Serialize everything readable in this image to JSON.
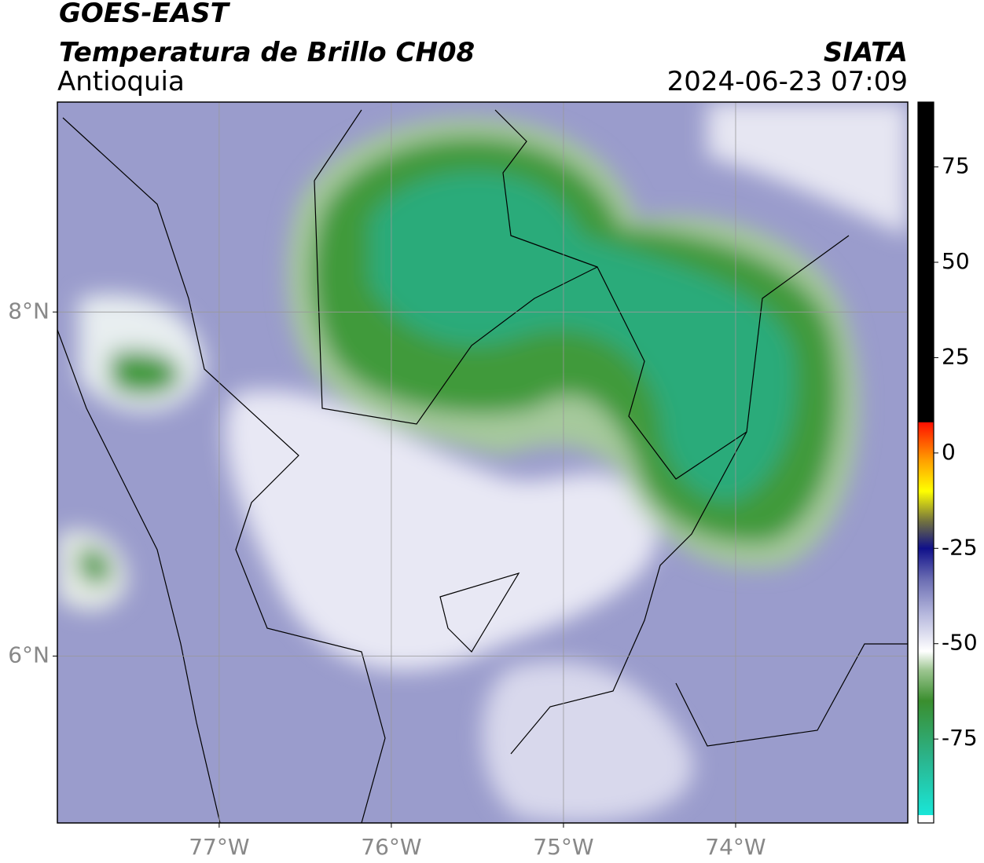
{
  "header": {
    "title": "GOES-EAST",
    "subtitle": "Temperatura de Brillo CH08",
    "region": "Antioquia",
    "source": "SIATA",
    "datetime": "2024-06-23 07:09"
  },
  "map": {
    "xlim": [
      -77.94,
      -73.0
    ],
    "ylim": [
      5.03,
      9.22
    ],
    "xticks": [
      {
        "value": -77,
        "label": "77°W"
      },
      {
        "value": -76,
        "label": "76°W"
      },
      {
        "value": -75,
        "label": "75°W"
      },
      {
        "value": -74,
        "label": "74°W"
      }
    ],
    "yticks": [
      {
        "value": 6,
        "label": "6°N"
      },
      {
        "value": 8,
        "label": "8°N"
      }
    ],
    "grid": true
  },
  "colorbar": {
    "lim": [
      -97,
      92
    ],
    "ticks": [
      75,
      50,
      25,
      0,
      -25,
      -50,
      -75
    ],
    "colormap": [
      {
        "value": -97,
        "color": "#ffffff"
      },
      {
        "value": -95,
        "color": "#ffffff"
      },
      {
        "value": -94.9,
        "color": "#19e6d8"
      },
      {
        "value": -80,
        "color": "#2bb48c"
      },
      {
        "value": -65,
        "color": "#3a8e2e"
      },
      {
        "value": -57,
        "color": "#9cc590"
      },
      {
        "value": -52,
        "color": "#ffffff"
      },
      {
        "value": -42,
        "color": "#b4b6dc"
      },
      {
        "value": -33,
        "color": "#6a6cb2"
      },
      {
        "value": -25,
        "color": "#10108a"
      },
      {
        "value": -18,
        "color": "#707040"
      },
      {
        "value": -10,
        "color": "#ffff00"
      },
      {
        "value": -2,
        "color": "#ffa000"
      },
      {
        "value": 8,
        "color": "#ff1000"
      },
      {
        "value": 8.1,
        "color": "#000000"
      },
      {
        "value": 92,
        "color": "#000000"
      }
    ]
  }
}
